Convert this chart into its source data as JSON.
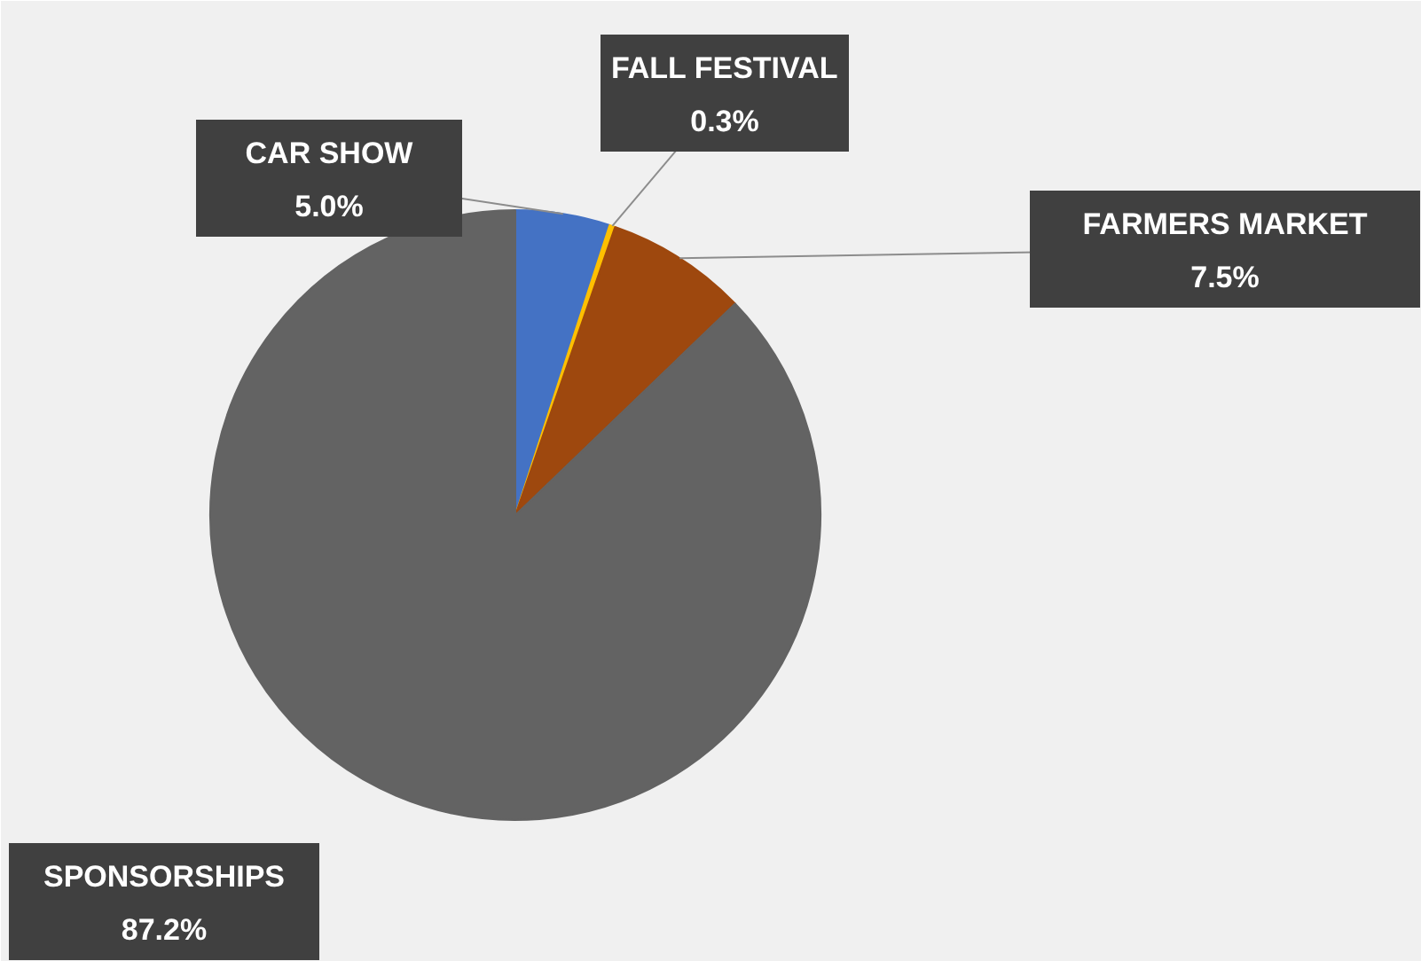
{
  "chart_data": {
    "type": "pie",
    "categories": [
      "CAR SHOW",
      "FALL FESTIVAL",
      "FARMERS MARKET",
      "SPONSORSHIPS"
    ],
    "values": [
      5.0,
      0.3,
      7.5,
      87.2
    ],
    "colors": [
      "#4472c4",
      "#ffc000",
      "#9e480e",
      "#636363"
    ],
    "value_labels": [
      "5.0%",
      "0.3%",
      "7.5%",
      "87.2%"
    ]
  }
}
